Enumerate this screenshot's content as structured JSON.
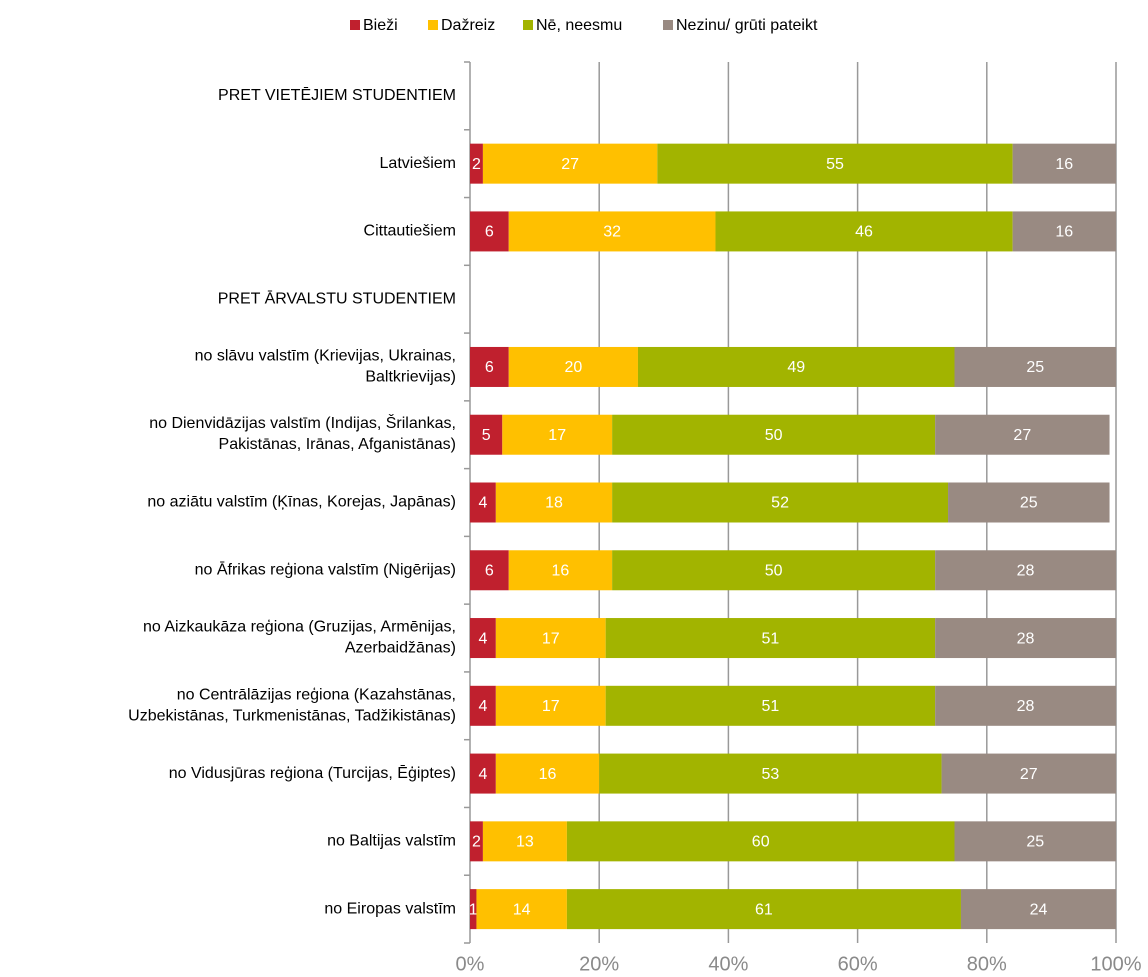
{
  "chart_data": {
    "type": "bar",
    "orientation": "horizontal",
    "stacked": true,
    "categories": [
      "PRET VIETĒJIEM STUDENTIEM",
      "Latviešiem",
      "Cittautiešiem",
      "PRET ĀRVALSTU STUDENTIEM",
      "no slāvu valstīm (Krievijas, Ukrainas,\nBaltkrievijas)",
      "no Dienvidāzijas valstīm (Indijas, Šrilankas,\nPakistānas, Irānas, Afganistānas)",
      "no aziātu valstīm (Ķīnas, Korejas, Japānas)",
      "no Āfrikas reģiona valstīm (Nigērijas)",
      "no Aizkaukāza reģiona (Gruzijas, Armēnijas,\nAzerbaidžānas)",
      "no Centrālāzijas reģiona (Kazahstānas,\nUzbekistānas, Turkmenistānas, Tadžikistānas)",
      "no Vidusjūras reģiona (Turcijas, Ēģiptes)",
      "no Baltijas valstīm",
      "no Eiropas valstīm"
    ],
    "series": [
      {
        "name": "Bieži",
        "color": "#c0202e",
        "values": [
          null,
          2,
          6,
          null,
          6,
          5,
          4,
          6,
          4,
          4,
          4,
          2,
          1
        ]
      },
      {
        "name": "Dažreiz",
        "color": "#ffc000",
        "values": [
          null,
          27,
          32,
          null,
          20,
          17,
          18,
          16,
          17,
          17,
          16,
          13,
          14
        ]
      },
      {
        "name": "Nē, neesmu",
        "color": "#a2b400",
        "values": [
          null,
          55,
          46,
          null,
          49,
          50,
          52,
          50,
          51,
          51,
          53,
          60,
          61
        ]
      },
      {
        "name": "Nezinu/ grūti pateikt",
        "color": "#998a82",
        "values": [
          null,
          16,
          16,
          null,
          25,
          27,
          25,
          28,
          28,
          28,
          27,
          25,
          24
        ]
      }
    ],
    "xlim": [
      0,
      100
    ],
    "xticks": [
      {
        "value": 0,
        "label": "0%"
      },
      {
        "value": 20,
        "label": "20%"
      },
      {
        "value": 40,
        "label": "40%"
      },
      {
        "value": 60,
        "label": "60%"
      },
      {
        "value": 80,
        "label": "80%"
      },
      {
        "value": 100,
        "label": "100%"
      }
    ],
    "grid": true,
    "legend": "top"
  }
}
